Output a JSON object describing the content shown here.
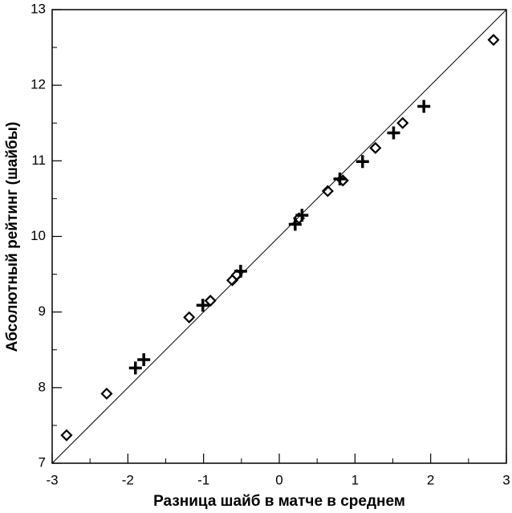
{
  "chart_data": {
    "type": "scatter",
    "x_label": "Разница шайб в матче в среднем",
    "y_label": "Абсолютный рейтинг (шайбы)",
    "xlim": [
      -3,
      3
    ],
    "ylim": [
      7,
      13
    ],
    "xticks": [
      -3,
      -2,
      -1,
      0,
      1,
      2,
      3
    ],
    "yticks": [
      7,
      8,
      9,
      10,
      11,
      12,
      13
    ],
    "diagonal": true,
    "series": [
      {
        "marker": "diamond",
        "color": "#000000",
        "x": [
          -2.81,
          -2.28,
          -1.19,
          -0.91,
          -0.62,
          -0.56,
          0.26,
          0.64,
          0.84,
          1.27,
          1.63,
          2.83
        ],
        "values": [
          7.37,
          7.92,
          8.93,
          9.15,
          9.42,
          9.49,
          10.24,
          10.6,
          10.74,
          11.17,
          11.5,
          12.6
        ]
      },
      {
        "marker": "cross",
        "color": "#000000",
        "x": [
          -1.9,
          -1.79,
          -1.01,
          -0.51,
          0.21,
          0.3,
          0.8,
          1.1,
          1.51,
          1.91
        ],
        "values": [
          8.26,
          8.37,
          9.09,
          9.54,
          10.16,
          10.28,
          10.76,
          10.99,
          11.37,
          11.72
        ]
      }
    ]
  }
}
